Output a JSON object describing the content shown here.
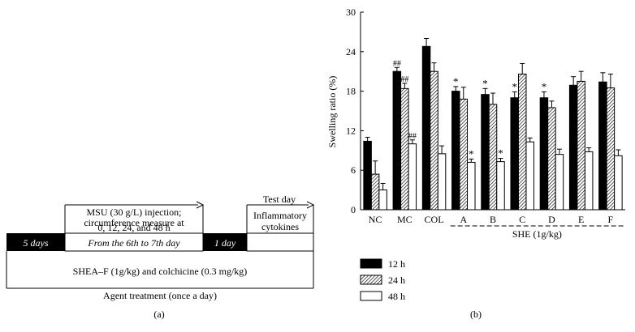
{
  "panel_a": {
    "label": "(a)",
    "segments": [
      "5 days",
      "From the 6th to 7th day",
      "1 day"
    ],
    "msu_note": [
      "MSU (30 g/L) injection;",
      "circumference measure at",
      "0, 12, 24, and 48 h"
    ],
    "test_day": "Test day",
    "test_note": [
      "Inflammatory",
      "cytokines"
    ],
    "treatment": "SHEA–F (1g/kg) and colchicine (0.3 mg/kg)",
    "agent": "Agent treatment (once a day)"
  },
  "panel_b": {
    "label": "(b)"
  },
  "chart_data": {
    "type": "bar",
    "ylabel": "Swelling ratio (%)",
    "ylim": [
      0,
      30
    ],
    "yticks": [
      0,
      6,
      12,
      18,
      24,
      30
    ],
    "categories": [
      "NC",
      "MC",
      "COL",
      "A",
      "B",
      "C",
      "D",
      "E",
      "F"
    ],
    "group_label": "SHE (1g/kg)",
    "legend_position": "bottom-left",
    "series": [
      {
        "name": "12 h",
        "pattern": "solid",
        "values": [
          10.4,
          21.0,
          24.8,
          18.0,
          17.5,
          17.0,
          17.0,
          18.9,
          19.4
        ],
        "errors": [
          0.6,
          0.6,
          1.2,
          0.7,
          0.9,
          0.9,
          0.9,
          1.3,
          1.4
        ],
        "marks": [
          "",
          "##",
          "",
          "*",
          "*",
          "*",
          "*",
          "",
          ""
        ]
      },
      {
        "name": "24 h",
        "pattern": "hatched",
        "values": [
          5.4,
          18.4,
          21.0,
          16.8,
          16.0,
          20.6,
          15.5,
          19.5,
          18.5
        ],
        "errors": [
          2.0,
          0.8,
          1.3,
          1.8,
          1.7,
          1.6,
          1.0,
          1.5,
          2.1
        ],
        "marks": [
          "",
          "##",
          "",
          "",
          "",
          "",
          "",
          "",
          ""
        ]
      },
      {
        "name": "48 h",
        "pattern": "open",
        "values": [
          3.0,
          10.0,
          8.5,
          7.2,
          7.3,
          10.3,
          8.4,
          8.8,
          8.2
        ],
        "errors": [
          1.0,
          0.6,
          1.2,
          0.5,
          0.5,
          0.6,
          0.8,
          0.6,
          0.9
        ],
        "marks": [
          "",
          "##",
          "",
          "*",
          "*",
          "",
          "",
          "",
          ""
        ]
      }
    ]
  }
}
